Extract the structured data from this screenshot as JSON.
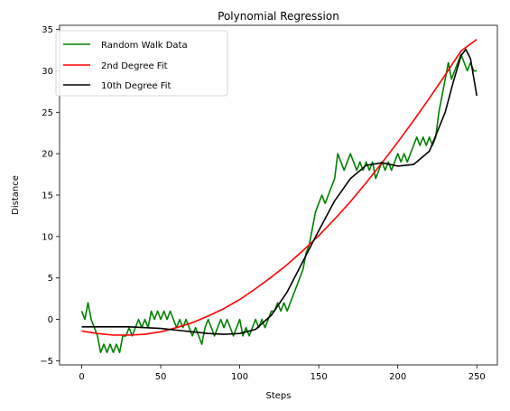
{
  "chart_data": {
    "type": "line",
    "title": "Polynomial Regression",
    "xlabel": "Steps",
    "ylabel": "Distance",
    "xlim": [
      -14,
      263
    ],
    "ylim": [
      -5.5,
      35.5
    ],
    "xticks": [
      0,
      50,
      100,
      150,
      200,
      250
    ],
    "yticks": [
      -5,
      0,
      5,
      10,
      15,
      20,
      25,
      30,
      35
    ],
    "grid": false,
    "legend_position": "top-left",
    "series": [
      {
        "name": "Random Walk Data",
        "color": "#008000",
        "x": [
          0,
          2,
          4,
          6,
          8,
          10,
          12,
          14,
          16,
          18,
          20,
          22,
          24,
          26,
          28,
          30,
          32,
          34,
          36,
          38,
          40,
          42,
          44,
          46,
          48,
          50,
          52,
          54,
          56,
          58,
          60,
          62,
          64,
          66,
          68,
          70,
          72,
          74,
          76,
          78,
          80,
          82,
          84,
          86,
          88,
          90,
          92,
          94,
          96,
          98,
          100,
          102,
          104,
          106,
          108,
          110,
          112,
          114,
          116,
          118,
          120,
          122,
          124,
          126,
          128,
          130,
          132,
          134,
          136,
          138,
          140,
          142,
          144,
          146,
          148,
          150,
          152,
          154,
          156,
          158,
          160,
          162,
          164,
          166,
          168,
          170,
          172,
          174,
          176,
          178,
          180,
          182,
          184,
          186,
          188,
          190,
          192,
          194,
          196,
          198,
          200,
          202,
          204,
          206,
          208,
          210,
          212,
          214,
          216,
          218,
          220,
          222,
          224,
          226,
          228,
          230,
          232,
          234,
          236,
          238,
          240,
          242,
          244,
          246,
          248,
          250
        ],
        "y": [
          1,
          0,
          2,
          0,
          -1,
          -2,
          -4,
          -3,
          -4,
          -3,
          -4,
          -3,
          -4,
          -2,
          -2,
          -1,
          -2,
          -1,
          0,
          -1,
          0,
          -1,
          1,
          0,
          1,
          0,
          1,
          0,
          1,
          0,
          -1,
          0,
          -1,
          0,
          -1,
          -2,
          -1,
          -2,
          -3,
          -1,
          0,
          -1,
          -2,
          -1,
          0,
          -1,
          0,
          -1,
          -2,
          -1,
          0,
          -2,
          -1,
          -2,
          -1,
          0,
          -1,
          0,
          -1,
          0,
          1,
          1,
          2,
          1,
          2,
          1,
          2,
          3,
          4,
          5,
          6,
          8,
          9,
          11,
          13,
          14,
          15,
          14,
          15,
          16,
          17,
          20,
          19,
          18,
          19,
          20,
          19,
          18,
          19,
          18,
          19,
          18,
          19,
          17,
          18,
          19,
          18,
          19,
          18,
          19,
          20,
          19,
          20,
          19,
          20,
          21,
          22,
          21,
          22,
          21,
          22,
          21,
          22,
          25,
          27,
          29,
          31,
          29,
          30,
          31,
          32,
          31,
          30,
          31,
          30,
          30
        ]
      },
      {
        "name": "2nd Degree Fit",
        "color": "#ff0000",
        "x": [
          0,
          10,
          20,
          30,
          40,
          50,
          60,
          70,
          80,
          90,
          100,
          110,
          120,
          130,
          140,
          150,
          160,
          170,
          180,
          190,
          200,
          210,
          220,
          230,
          240,
          250
        ],
        "y": [
          -1.4,
          -1.7,
          -1.9,
          -1.9,
          -1.8,
          -1.5,
          -1.0,
          -0.4,
          0.4,
          1.3,
          2.4,
          3.7,
          5.1,
          6.6,
          8.3,
          10.1,
          12.1,
          14.2,
          16.5,
          18.9,
          21.4,
          24.0,
          26.7,
          29.5,
          32.4,
          33.8
        ]
      },
      {
        "name": "10th Degree Fit",
        "color": "#000000",
        "x": [
          0,
          10,
          20,
          30,
          40,
          50,
          60,
          70,
          80,
          90,
          100,
          110,
          120,
          130,
          140,
          150,
          160,
          170,
          180,
          190,
          200,
          210,
          220,
          230,
          235,
          240,
          243,
          246,
          250
        ],
        "y": [
          -0.9,
          -0.9,
          -0.9,
          -0.9,
          -1.0,
          -1.1,
          -1.3,
          -1.5,
          -1.7,
          -1.8,
          -1.7,
          -1.2,
          0.5,
          3.3,
          7.0,
          10.7,
          14.3,
          17.0,
          18.6,
          18.9,
          18.5,
          18.7,
          20.3,
          25.0,
          28.6,
          31.8,
          32.6,
          31.5,
          27.0
        ]
      }
    ]
  }
}
